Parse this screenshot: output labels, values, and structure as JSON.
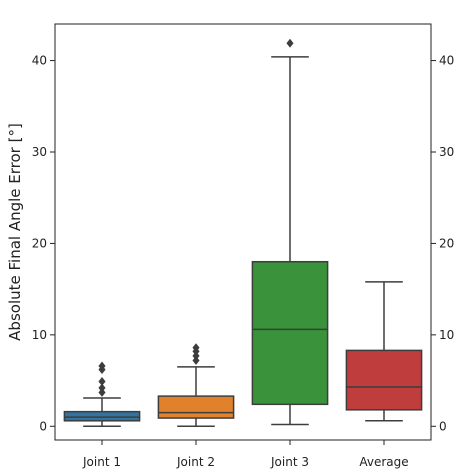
{
  "chart_data": {
    "type": "box",
    "title": "",
    "xlabel": "",
    "ylabel": "Absolute Final Angle Error [°]",
    "ylim": [
      -1.5,
      44.0
    ],
    "yticks": [
      0,
      10,
      20,
      30,
      40
    ],
    "ytick_labels": [
      "0",
      "10",
      "20",
      "30",
      "40"
    ],
    "secondary_y_axis": true,
    "grid": false,
    "categories": [
      "Joint 1",
      "Joint 2",
      "Joint 3",
      "Average"
    ],
    "boxes": [
      {
        "name": "Joint 1",
        "color": "#3274a1",
        "whisker_low": 0.0,
        "q1": 0.6,
        "median": 1.0,
        "q3": 1.6,
        "whisker_high": 3.1,
        "outliers": [
          3.7,
          4.2,
          4.9,
          6.2,
          6.6
        ]
      },
      {
        "name": "Joint 2",
        "color": "#e1812c",
        "whisker_low": 0.0,
        "q1": 0.9,
        "median": 1.5,
        "q3": 3.3,
        "whisker_high": 6.5,
        "outliers": [
          7.2,
          7.7,
          8.2,
          8.6
        ]
      },
      {
        "name": "Joint 3",
        "color": "#3a923a",
        "whisker_low": 0.2,
        "q1": 2.4,
        "median": 10.6,
        "q3": 18.0,
        "whisker_high": 40.4,
        "outliers": [
          41.9
        ]
      },
      {
        "name": "Average",
        "color": "#c03d3e",
        "whisker_low": 0.6,
        "q1": 1.8,
        "median": 4.3,
        "q3": 8.3,
        "whisker_high": 15.8,
        "outliers": []
      }
    ]
  }
}
